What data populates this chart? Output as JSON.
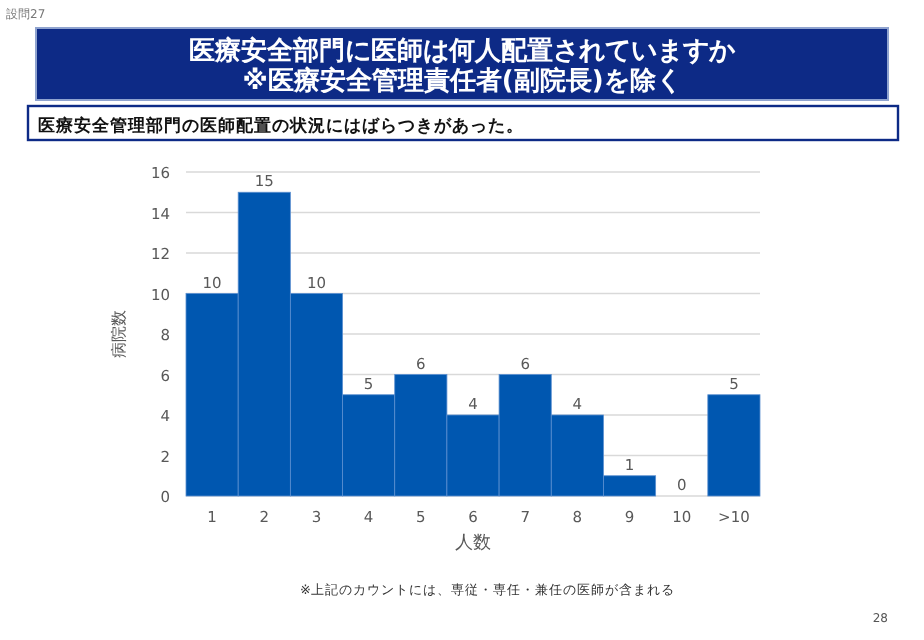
{
  "chart_data": {
    "type": "bar",
    "title": "医療安全部門に医師は何人配置されていますか\n※医療安全管理責任者(副院長)を除く",
    "subtitle": "医療安全管理部門の医師配置の状況にはばらつきがあった。",
    "xlabel": "人数",
    "ylabel": "病院数",
    "categories": [
      "1",
      "2",
      "3",
      "4",
      "5",
      "6",
      "7",
      "8",
      "9",
      "10",
      ">10"
    ],
    "values": [
      10,
      15,
      10,
      5,
      6,
      4,
      6,
      4,
      1,
      0,
      5
    ],
    "color": "#0057b0",
    "ylim": [
      0,
      16
    ],
    "yticks": [
      0,
      2,
      4,
      6,
      8,
      10,
      12,
      14,
      16
    ],
    "grid": "y",
    "data_labels": true,
    "annotations": [
      "設問27",
      "※上記のカウントには、専従・専任・兼任の医師が含まれる",
      "28"
    ]
  }
}
